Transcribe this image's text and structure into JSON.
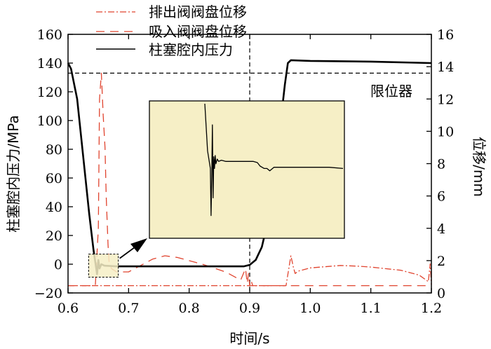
{
  "chart_data": {
    "type": "line",
    "xlabel": "时间/s",
    "ylabel_left": "柱塞腔内压力/MPa",
    "ylabel_right": "位移/mm",
    "xlim": [
      0.6,
      1.2
    ],
    "ylim_left": [
      -20,
      160
    ],
    "ylim_right": [
      0,
      16
    ],
    "x_ticks": [
      "0.6",
      "0.7",
      "0.8",
      "0.9",
      "1.0",
      "1.1",
      "1.2"
    ],
    "y_left_ticks": [
      "160",
      "140",
      "120",
      "100",
      "80",
      "60",
      "40",
      "20",
      "0",
      "−20"
    ],
    "y_right_ticks": [
      "16",
      "14",
      "12",
      "10",
      "8",
      "6",
      "4",
      "2",
      "0"
    ],
    "legend": [
      {
        "label": "排出阀阀盘位移",
        "style": "dash-dot",
        "color": "#e0442f"
      },
      {
        "label": "吸入阀阀盘位移",
        "style": "dashed",
        "color": "#e0442f"
      },
      {
        "label": "柱塞腔内压力",
        "style": "solid",
        "color": "#000000"
      }
    ],
    "annotation": {
      "label": "限位器",
      "limit_y_right": 13.6
    },
    "vline_x": 0.9,
    "series": [
      {
        "name": "柱塞腔内压力",
        "axis": "left",
        "x": [
          0.6,
          0.605,
          0.615,
          0.625,
          0.635,
          0.642,
          0.648,
          0.65,
          0.652,
          0.655,
          0.66,
          0.68,
          0.75,
          0.85,
          0.89,
          0.9,
          0.91,
          0.92,
          0.93,
          0.94,
          0.95,
          0.958,
          0.963,
          0.968,
          1.0,
          1.1,
          1.2
        ],
        "y": [
          140,
          136,
          115,
          75,
          35,
          10,
          -7,
          3,
          -3,
          0,
          -1,
          -1.5,
          -1.5,
          -1.5,
          -1.5,
          -0.5,
          3,
          12,
          30,
          60,
          95,
          125,
          140,
          142,
          141.5,
          141,
          140
        ]
      },
      {
        "name": "排出阀阀盘位移",
        "axis": "right",
        "x": [
          0.6,
          0.96,
          0.968,
          0.972,
          0.975,
          0.98,
          0.99,
          1.0,
          1.05,
          1.08,
          1.1,
          1.15,
          1.18,
          1.195,
          1.198,
          1.2
        ],
        "y": [
          0.45,
          0.45,
          2.3,
          1.6,
          1.2,
          1.35,
          1.45,
          1.55,
          1.7,
          1.65,
          1.6,
          1.4,
          1.1,
          0.7,
          1.8,
          0.5
        ]
      },
      {
        "name": "吸入阀阀盘位移",
        "axis": "right",
        "x": [
          0.6,
          0.645,
          0.65,
          0.652,
          0.655,
          0.658,
          0.661,
          0.663,
          0.666,
          0.668,
          0.672,
          0.68,
          0.7,
          0.74,
          0.76,
          0.78,
          0.82,
          0.86,
          0.885,
          0.893,
          0.896,
          0.898,
          0.9,
          0.902,
          0.905,
          1.2
        ],
        "y": [
          0.45,
          0.45,
          4,
          12,
          13.6,
          11,
          9,
          6,
          3,
          1.8,
          1.5,
          1.3,
          1.3,
          2.1,
          2.3,
          2.2,
          1.8,
          1.3,
          0.8,
          1.5,
          0.6,
          1.2,
          0.45,
          0.8,
          0.45,
          0.45
        ]
      }
    ],
    "inset": {
      "highlight_x": [
        0.634,
        0.683
      ],
      "highlight_y_left": [
        -9,
        7
      ],
      "x": [
        0.0,
        0.02,
        0.04,
        0.045,
        0.05,
        0.055,
        0.06,
        0.065,
        0.07,
        0.075,
        0.08,
        0.09,
        0.1,
        0.12,
        0.15,
        0.2,
        0.25,
        0.3,
        0.35,
        0.38,
        0.4,
        0.43,
        0.45,
        0.47,
        0.5,
        0.55,
        0.6,
        0.65,
        0.7,
        0.8,
        0.9,
        1.0
      ],
      "y": [
        1.0,
        0.6,
        0.45,
        0.05,
        0.4,
        0.82,
        0.2,
        0.55,
        0.45,
        0.56,
        0.49,
        0.53,
        0.51,
        0.52,
        0.51,
        0.51,
        0.51,
        0.51,
        0.51,
        0.5,
        0.47,
        0.45,
        0.45,
        0.43,
        0.46,
        0.46,
        0.46,
        0.46,
        0.46,
        0.46,
        0.46,
        0.45
      ]
    }
  }
}
